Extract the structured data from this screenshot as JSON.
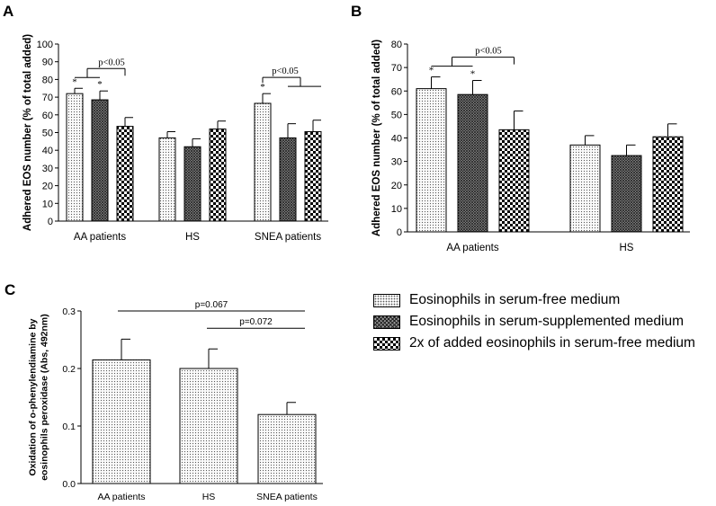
{
  "panels": {
    "a": "A",
    "b": "B",
    "c": "C"
  },
  "legend": {
    "items": [
      {
        "label": "Eosinophils in serum-free medium",
        "pattern": "dots"
      },
      {
        "label": "Eosinophils in serum-supplemented medium",
        "pattern": "cross"
      },
      {
        "label": "2x of added eosinophils in serum-free medium",
        "pattern": "check"
      }
    ]
  },
  "chart_data": [
    {
      "panel": "A",
      "type": "bar",
      "ylabel": "Adhered EOS number (% of total added)",
      "ylim": [
        0,
        100
      ],
      "yticks": [
        0,
        10,
        20,
        30,
        40,
        50,
        60,
        70,
        80,
        90,
        100
      ],
      "categories": [
        "AA patients",
        "HS",
        "SNEA patients"
      ],
      "series": [
        {
          "name": "Eosinophils in serum-free medium",
          "pattern": "dots",
          "values": [
            72,
            47,
            66.5
          ],
          "errors": [
            3,
            3.5,
            5.5
          ]
        },
        {
          "name": "Eosinophils in serum-supplemented medium",
          "pattern": "cross",
          "values": [
            68.5,
            42,
            47
          ],
          "errors": [
            5,
            4.5,
            8
          ]
        },
        {
          "name": "2x of added eosinophils in serum-free medium",
          "pattern": "check",
          "values": [
            53.5,
            52,
            50.5
          ],
          "errors": [
            5,
            4.5,
            6.5
          ]
        }
      ],
      "significance": [
        {
          "category": 0,
          "series": 0,
          "label": "*"
        },
        {
          "category": 0,
          "series": 1,
          "label": "*"
        },
        {
          "category": 2,
          "series": 0,
          "label": "*"
        }
      ],
      "brackets": [
        {
          "label": "p<0.05",
          "category": 0,
          "left_group": [
            0,
            1
          ],
          "right_series": 2
        },
        {
          "label": "p<0.05",
          "category": 2,
          "left_series": 0,
          "right_group": [
            1,
            2
          ]
        }
      ]
    },
    {
      "panel": "B",
      "type": "bar",
      "ylabel": "Adhered EOS number (% of total added)",
      "ylim": [
        0,
        80
      ],
      "yticks": [
        0,
        10,
        20,
        30,
        40,
        50,
        60,
        70,
        80
      ],
      "categories": [
        "AA patients",
        "HS"
      ],
      "series": [
        {
          "name": "Eosinophils in serum-free medium",
          "pattern": "dots",
          "values": [
            61,
            37
          ],
          "errors": [
            5,
            4
          ]
        },
        {
          "name": "Eosinophils in serum-supplemented medium",
          "pattern": "cross",
          "values": [
            58.5,
            32.5
          ],
          "errors": [
            6,
            4.5
          ]
        },
        {
          "name": "2x of added eosinophils in serum-free medium",
          "pattern": "check",
          "values": [
            43.5,
            40.5
          ],
          "errors": [
            8,
            5.5
          ]
        }
      ],
      "significance": [
        {
          "category": 0,
          "series": 0,
          "label": "*"
        },
        {
          "category": 0,
          "series": 1,
          "label": "*"
        }
      ],
      "brackets": [
        {
          "label": "p<0.05",
          "category": 0,
          "left_group": [
            0,
            1
          ],
          "right_series": 2
        }
      ]
    },
    {
      "panel": "C",
      "type": "bar",
      "ylabel": [
        "Oxidation of o-phenylendiamine by",
        "eosinophils peroxidase (Abs, 492nm)"
      ],
      "ylim": [
        0,
        0.3
      ],
      "yticks": [
        0.0,
        0.1,
        0.2,
        0.3
      ],
      "ytick_labels": [
        "0.0",
        "0.1",
        "0.2",
        "0.3"
      ],
      "categories": [
        "AA patients",
        "HS",
        "SNEA patients"
      ],
      "series": [
        {
          "name": "Eosinophils in serum-free medium",
          "pattern": "dots",
          "values": [
            0.215,
            0.2,
            0.12
          ],
          "errors": [
            0.036,
            0.034,
            0.021
          ]
        }
      ],
      "annotations": [
        {
          "label": "p=0.067",
          "from": 0,
          "to": 2,
          "y": 0.3
        },
        {
          "label": "p=0.072",
          "from": 1,
          "to": 2,
          "y": 0.27
        }
      ]
    }
  ]
}
